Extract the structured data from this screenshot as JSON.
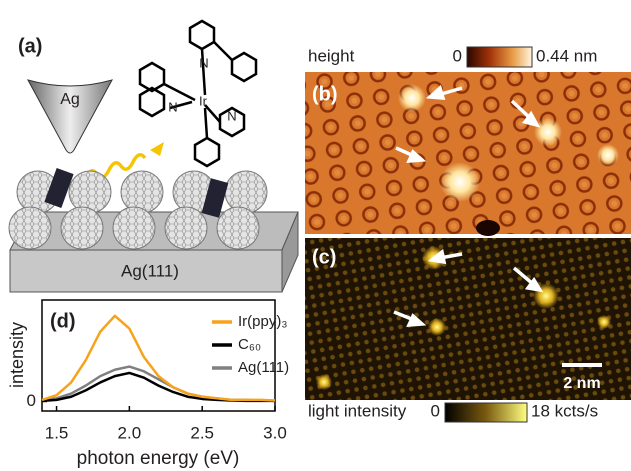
{
  "panels": {
    "a": {
      "label": "(a)",
      "tip": "Ag",
      "substrate": "Ag(111)",
      "atoms": [
        "N",
        "N",
        "Ir",
        "N"
      ]
    },
    "b": {
      "label": "(b)",
      "colorbar_title": "height",
      "colorbar_min": "0",
      "colorbar_max": "0.44 nm"
    },
    "c": {
      "label": "(c)",
      "scale_bar": "2 nm",
      "colorbar_title": "light intensity",
      "colorbar_min": "0",
      "colorbar_max": "18 kcts/s"
    }
  },
  "chart_data": {
    "type": "line",
    "label": "(d)",
    "y_label": "intensity",
    "x_label": "photon energy (eV)",
    "x": [
      1.4,
      1.5,
      1.6,
      1.7,
      1.8,
      1.9,
      2.0,
      2.1,
      2.2,
      2.3,
      2.4,
      2.5,
      2.6,
      2.7,
      2.8,
      2.9,
      3.0
    ],
    "series": [
      {
        "name": "Ir(ppy)₃",
        "color": "#f7a21b",
        "values": [
          0.05,
          0.2,
          0.6,
          1.3,
          2.2,
          2.7,
          2.3,
          1.4,
          0.8,
          0.45,
          0.25,
          0.15,
          0.1,
          0.05,
          0.05,
          0.05,
          0.03
        ]
      },
      {
        "name": "C₆₀",
        "color": "#000000",
        "values": [
          0.02,
          0.05,
          0.15,
          0.35,
          0.6,
          0.8,
          0.9,
          0.75,
          0.5,
          0.3,
          0.15,
          0.08,
          0.05,
          0.03,
          0.02,
          0.02,
          0.02
        ]
      },
      {
        "name": "Ag(111)",
        "color": "#808080",
        "values": [
          0.05,
          0.1,
          0.25,
          0.5,
          0.8,
          1.0,
          1.1,
          0.95,
          0.7,
          0.45,
          0.25,
          0.15,
          0.1,
          0.05,
          0.05,
          0.03,
          0.02
        ]
      }
    ],
    "xlim": [
      1.4,
      3.0
    ],
    "xticks": [
      1.5,
      {
        "value": 2.0,
        "label": "2.0"
      },
      2.5,
      {
        "value": 3.0,
        "label": "3.0"
      }
    ],
    "ylim": [
      -0.3,
      3.2
    ],
    "yticks": [
      0
    ]
  }
}
